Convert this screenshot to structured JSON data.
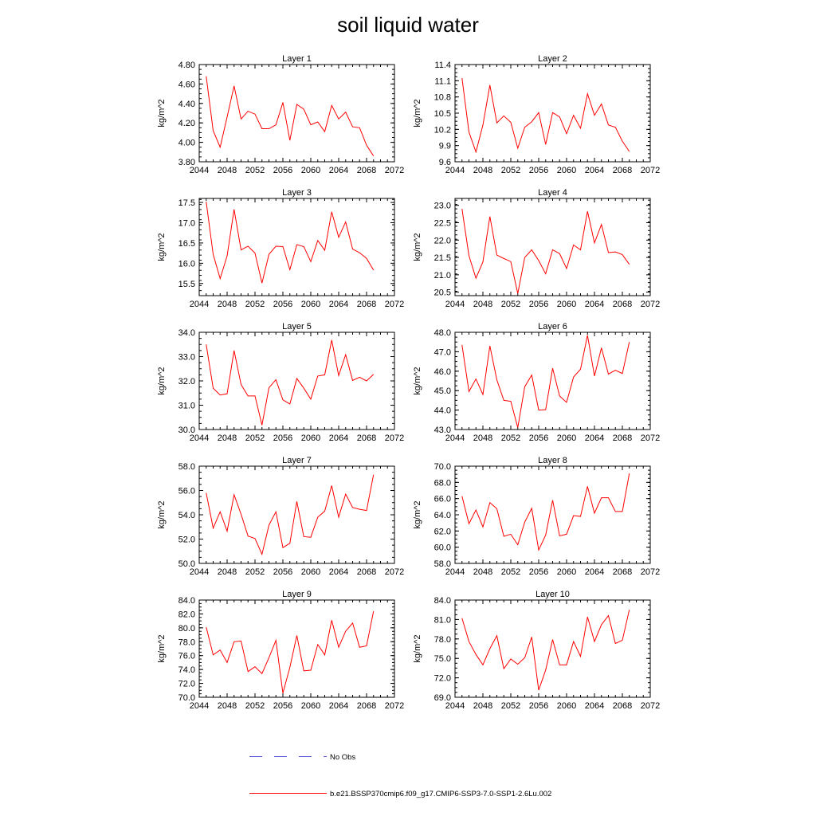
{
  "figure": {
    "title": "soil liquid water",
    "line_color": "#ff0000",
    "noobs_color": "#4a4ad6",
    "legend": {
      "no_obs_label": "No Obs",
      "model_label": "b.e21.BSSP370cmip6.f09_g17.CMIP6-SSP3-7.0-SSP1-2.6Lu.002"
    }
  },
  "chart_data": [
    {
      "type": "line",
      "title": "Layer 1",
      "xlabel": "",
      "ylabel": "kg/m^2",
      "xlim": [
        2044,
        2072
      ],
      "ylim": [
        3.8,
        4.8
      ],
      "xticks": [
        "2044",
        "2048",
        "2052",
        "2056",
        "2060",
        "2064",
        "2068",
        "2072"
      ],
      "yticks": [
        "3.80",
        "4.00",
        "4.20",
        "4.40",
        "4.60",
        "4.80"
      ],
      "series": [
        {
          "x": [
            2045,
            2046,
            2047,
            2048,
            2049,
            2050,
            2051,
            2052,
            2053,
            2054,
            2055,
            2056,
            2057,
            2058,
            2059,
            2060,
            2061,
            2062,
            2063,
            2064,
            2065,
            2066,
            2067,
            2068,
            2069
          ],
          "values": [
            4.68,
            4.12,
            3.95,
            4.26,
            4.58,
            4.24,
            4.32,
            4.29,
            4.14,
            4.14,
            4.18,
            4.41,
            4.02,
            4.39,
            4.34,
            4.18,
            4.21,
            4.11,
            4.38,
            4.24,
            4.31,
            4.16,
            4.15,
            3.97,
            3.86
          ]
        }
      ]
    },
    {
      "type": "line",
      "title": "Layer 2",
      "xlabel": "",
      "ylabel": "kg/m^2",
      "xlim": [
        2044,
        2072
      ],
      "ylim": [
        9.6,
        11.4
      ],
      "xticks": [
        "2044",
        "2048",
        "2052",
        "2056",
        "2060",
        "2064",
        "2068",
        "2072"
      ],
      "yticks": [
        "9.6",
        "9.9",
        "10.2",
        "10.5",
        "10.8",
        "11.1",
        "11.4"
      ],
      "series": [
        {
          "x": [
            2045,
            2046,
            2047,
            2048,
            2049,
            2050,
            2051,
            2052,
            2053,
            2054,
            2055,
            2056,
            2057,
            2058,
            2059,
            2060,
            2061,
            2062,
            2063,
            2064,
            2065,
            2066,
            2067,
            2068,
            2069
          ],
          "values": [
            11.15,
            10.15,
            9.78,
            10.28,
            11.02,
            10.32,
            10.45,
            10.33,
            9.85,
            10.24,
            10.34,
            10.51,
            9.92,
            10.51,
            10.43,
            10.12,
            10.46,
            10.22,
            10.86,
            10.46,
            10.67,
            10.28,
            10.24,
            9.98,
            9.79
          ]
        }
      ]
    },
    {
      "type": "line",
      "title": "Layer 3",
      "xlabel": "",
      "ylabel": "kg/m^2",
      "xlim": [
        2044,
        2072
      ],
      "ylim": [
        15.2,
        17.6
      ],
      "xticks": [
        "2044",
        "2048",
        "2052",
        "2056",
        "2060",
        "2064",
        "2068",
        "2072"
      ],
      "yticks": [
        "15.5",
        "16.0",
        "16.5",
        "17.0",
        "17.5"
      ],
      "series": [
        {
          "x": [
            2045,
            2046,
            2047,
            2048,
            2049,
            2050,
            2051,
            2052,
            2053,
            2054,
            2055,
            2056,
            2057,
            2058,
            2059,
            2060,
            2061,
            2062,
            2063,
            2064,
            2065,
            2066,
            2067,
            2068,
            2069
          ],
          "values": [
            17.52,
            16.22,
            15.62,
            16.18,
            17.33,
            16.33,
            16.42,
            16.25,
            15.51,
            16.22,
            16.42,
            16.41,
            15.84,
            16.46,
            16.41,
            16.04,
            16.56,
            16.32,
            17.27,
            16.64,
            17.02,
            16.35,
            16.26,
            16.12,
            15.83
          ]
        }
      ]
    },
    {
      "type": "line",
      "title": "Layer 4",
      "xlabel": "",
      "ylabel": "kg/m^2",
      "xlim": [
        2044,
        2072
      ],
      "ylim": [
        20.4,
        23.2
      ],
      "xticks": [
        "2044",
        "2048",
        "2052",
        "2056",
        "2060",
        "2064",
        "2068",
        "2072"
      ],
      "yticks": [
        "20.5",
        "21.0",
        "21.5",
        "22.0",
        "22.5",
        "23.0"
      ],
      "series": [
        {
          "x": [
            2045,
            2046,
            2047,
            2048,
            2049,
            2050,
            2051,
            2052,
            2053,
            2054,
            2055,
            2056,
            2057,
            2058,
            2059,
            2060,
            2061,
            2062,
            2063,
            2064,
            2065,
            2066,
            2067,
            2068,
            2069
          ],
          "values": [
            22.9,
            21.55,
            20.9,
            21.37,
            22.68,
            21.57,
            21.47,
            21.38,
            20.46,
            21.5,
            21.72,
            21.41,
            21.03,
            21.72,
            21.61,
            21.18,
            21.86,
            21.72,
            22.83,
            21.92,
            22.45,
            21.64,
            21.66,
            21.58,
            21.3
          ]
        }
      ]
    },
    {
      "type": "line",
      "title": "Layer 5",
      "xlabel": "",
      "ylabel": "kg/m^2",
      "xlim": [
        2044,
        2072
      ],
      "ylim": [
        30.0,
        34.0
      ],
      "xticks": [
        "2044",
        "2048",
        "2052",
        "2056",
        "2060",
        "2064",
        "2068",
        "2072"
      ],
      "yticks": [
        "30.0",
        "31.0",
        "32.0",
        "33.0",
        "34.0"
      ],
      "series": [
        {
          "x": [
            2045,
            2046,
            2047,
            2048,
            2049,
            2050,
            2051,
            2052,
            2053,
            2054,
            2055,
            2056,
            2057,
            2058,
            2059,
            2060,
            2061,
            2062,
            2063,
            2064,
            2065,
            2066,
            2067,
            2068,
            2069
          ],
          "values": [
            33.5,
            31.7,
            31.42,
            31.47,
            33.25,
            31.85,
            31.38,
            31.38,
            30.18,
            31.72,
            32.05,
            31.22,
            31.05,
            32.1,
            31.7,
            31.25,
            32.2,
            32.25,
            33.68,
            32.22,
            33.08,
            32.02,
            32.15,
            32.0,
            32.27
          ]
        }
      ]
    },
    {
      "type": "line",
      "title": "Layer 6",
      "xlabel": "",
      "ylabel": "kg/m^2",
      "xlim": [
        2044,
        2072
      ],
      "ylim": [
        43.0,
        48.0
      ],
      "xticks": [
        "2044",
        "2048",
        "2052",
        "2056",
        "2060",
        "2064",
        "2068",
        "2072"
      ],
      "yticks": [
        "43.0",
        "44.0",
        "45.0",
        "46.0",
        "47.0",
        "48.0"
      ],
      "series": [
        {
          "x": [
            2045,
            2046,
            2047,
            2048,
            2049,
            2050,
            2051,
            2052,
            2053,
            2054,
            2055,
            2056,
            2057,
            2058,
            2059,
            2060,
            2061,
            2062,
            2063,
            2064,
            2065,
            2066,
            2067,
            2068,
            2069
          ],
          "values": [
            47.35,
            44.95,
            45.6,
            44.8,
            47.3,
            45.55,
            44.5,
            44.45,
            43.1,
            45.2,
            45.8,
            44.0,
            44.02,
            46.15,
            44.72,
            44.4,
            45.7,
            46.1,
            47.85,
            45.75,
            47.2,
            45.85,
            46.05,
            45.88,
            47.5
          ]
        }
      ]
    },
    {
      "type": "line",
      "title": "Layer 7",
      "xlabel": "",
      "ylabel": "kg/m^2",
      "xlim": [
        2044,
        2072
      ],
      "ylim": [
        50.0,
        58.0
      ],
      "xticks": [
        "2044",
        "2048",
        "2052",
        "2056",
        "2060",
        "2064",
        "2068",
        "2072"
      ],
      "yticks": [
        "50.0",
        "52.0",
        "54.0",
        "56.0",
        "58.0"
      ],
      "series": [
        {
          "x": [
            2045,
            2046,
            2047,
            2048,
            2049,
            2050,
            2051,
            2052,
            2053,
            2054,
            2055,
            2056,
            2057,
            2058,
            2059,
            2060,
            2061,
            2062,
            2063,
            2064,
            2065,
            2066,
            2067,
            2068,
            2069
          ],
          "values": [
            55.8,
            52.9,
            54.25,
            52.65,
            55.65,
            54.05,
            52.25,
            52.05,
            50.75,
            53.15,
            54.25,
            51.3,
            51.65,
            55.1,
            52.2,
            52.15,
            53.8,
            54.3,
            56.4,
            53.8,
            55.7,
            54.6,
            54.45,
            54.35,
            57.3
          ]
        }
      ]
    },
    {
      "type": "line",
      "title": "Layer 8",
      "xlabel": "",
      "ylabel": "kg/m^2",
      "xlim": [
        2044,
        2072
      ],
      "ylim": [
        58.0,
        70.0
      ],
      "xticks": [
        "2044",
        "2048",
        "2052",
        "2056",
        "2060",
        "2064",
        "2068",
        "2072"
      ],
      "yticks": [
        "58.0",
        "60.0",
        "62.0",
        "64.0",
        "66.0",
        "68.0",
        "70.0"
      ],
      "series": [
        {
          "x": [
            2045,
            2046,
            2047,
            2048,
            2049,
            2050,
            2051,
            2052,
            2053,
            2054,
            2055,
            2056,
            2057,
            2058,
            2059,
            2060,
            2061,
            2062,
            2063,
            2064,
            2065,
            2066,
            2067,
            2068,
            2069
          ],
          "values": [
            66.3,
            62.9,
            64.6,
            62.5,
            65.5,
            64.75,
            61.35,
            61.6,
            60.3,
            63.1,
            64.8,
            59.65,
            61.5,
            65.8,
            61.4,
            61.6,
            63.9,
            63.8,
            67.5,
            64.2,
            66.1,
            66.1,
            64.4,
            64.4,
            69.1
          ]
        }
      ]
    },
    {
      "type": "line",
      "title": "Layer 9",
      "xlabel": "",
      "ylabel": "kg/m^2",
      "xlim": [
        2044,
        2072
      ],
      "ylim": [
        70.0,
        84.0
      ],
      "xticks": [
        "2044",
        "2048",
        "2052",
        "2056",
        "2060",
        "2064",
        "2068",
        "2072"
      ],
      "yticks": [
        "70.0",
        "72.0",
        "74.0",
        "76.0",
        "78.0",
        "80.0",
        "82.0",
        "84.0"
      ],
      "series": [
        {
          "x": [
            2045,
            2046,
            2047,
            2048,
            2049,
            2050,
            2051,
            2052,
            2053,
            2054,
            2055,
            2056,
            2057,
            2058,
            2059,
            2060,
            2061,
            2062,
            2063,
            2064,
            2065,
            2066,
            2067,
            2068,
            2069
          ],
          "values": [
            80.1,
            76.1,
            76.8,
            75.0,
            78.0,
            78.1,
            73.7,
            74.4,
            73.4,
            75.7,
            78.2,
            70.6,
            74.3,
            78.9,
            73.8,
            73.9,
            77.6,
            76.1,
            81.1,
            77.2,
            79.5,
            80.7,
            77.2,
            77.4,
            82.4
          ]
        }
      ]
    },
    {
      "type": "line",
      "title": "Layer 10",
      "xlabel": "",
      "ylabel": "kg/m^2",
      "xlim": [
        2044,
        2072
      ],
      "ylim": [
        69.0,
        84.0
      ],
      "xticks": [
        "2044",
        "2048",
        "2052",
        "2056",
        "2060",
        "2064",
        "2068",
        "2072"
      ],
      "yticks": [
        "69.0",
        "72.0",
        "75.0",
        "78.0",
        "81.0",
        "84.0"
      ],
      "series": [
        {
          "x": [
            2045,
            2046,
            2047,
            2048,
            2049,
            2050,
            2051,
            2052,
            2053,
            2054,
            2055,
            2056,
            2057,
            2058,
            2059,
            2060,
            2061,
            2062,
            2063,
            2064,
            2065,
            2066,
            2067,
            2068,
            2069
          ],
          "values": [
            81.2,
            77.6,
            75.6,
            74.0,
            76.5,
            78.5,
            73.4,
            74.9,
            74.1,
            75.1,
            78.3,
            70.1,
            73.2,
            77.9,
            74.0,
            74.0,
            77.6,
            75.3,
            81.4,
            77.6,
            80.2,
            81.6,
            77.3,
            77.8,
            82.5
          ]
        }
      ]
    }
  ]
}
